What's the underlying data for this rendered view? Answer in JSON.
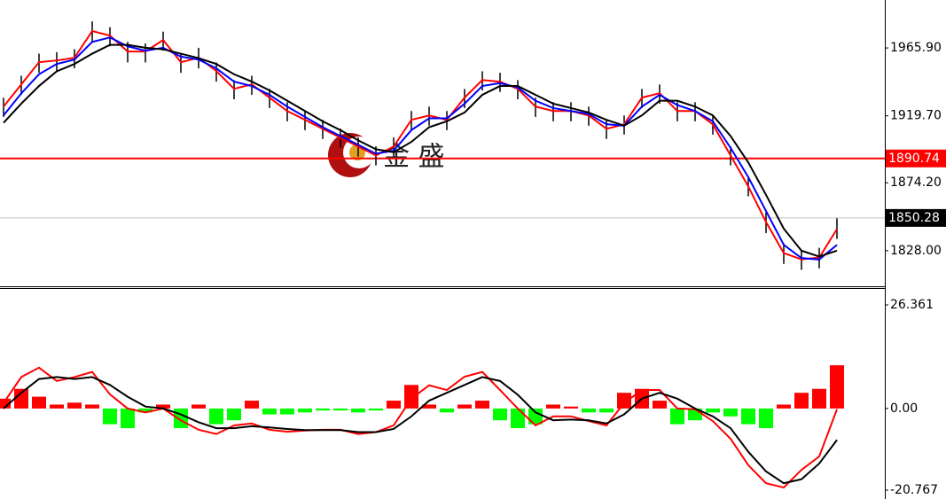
{
  "chart_data": [
    {
      "type": "price",
      "high": [
        1932,
        1947,
        1962,
        1963,
        1965,
        1984,
        1980,
        1970,
        1969,
        1977,
        1962,
        1966,
        1956,
        1944,
        1947,
        1938,
        1929,
        1923,
        1917,
        1911,
        1905,
        1899,
        1905,
        1923,
        1926,
        1923,
        1938,
        1950,
        1949,
        1944,
        1932,
        1929,
        1929,
        1926,
        1917,
        1920,
        1938,
        1941,
        1929,
        1929,
        1920,
        1899,
        1878,
        1854,
        1833,
        1828,
        1830,
        1850
      ],
      "low": [
        1919,
        1934,
        1949,
        1950,
        1952,
        1970,
        1967,
        1956,
        1956,
        1964,
        1949,
        1952,
        1943,
        1931,
        1934,
        1925,
        1916,
        1910,
        1904,
        1898,
        1892,
        1886,
        1892,
        1910,
        1913,
        1910,
        1925,
        1937,
        1936,
        1931,
        1919,
        1916,
        1916,
        1913,
        1904,
        1907,
        1925,
        1928,
        1916,
        1916,
        1907,
        1886,
        1865,
        1840,
        1819,
        1815,
        1816,
        1836
      ],
      "bar_color": "#000000",
      "series": [
        {
          "color": "#ff0000",
          "values": [
            1926.0,
            1941.1,
            1956.2,
            1957.4,
            1959.2,
            1977.4,
            1974.3,
            1963.5,
            1963.5,
            1971.3,
            1956.2,
            1959.2,
            1950.2,
            1938.1,
            1941.1,
            1932.1,
            1923.0,
            1917.0,
            1910.9,
            1904.9,
            1898.8,
            1892.8,
            1898.8,
            1917.0,
            1920.0,
            1917.0,
            1932.1,
            1944.1,
            1942.9,
            1938.1,
            1926.0,
            1923.0,
            1923.0,
            1920.0,
            1910.9,
            1913.9,
            1932.1,
            1935.1,
            1923.0,
            1923.0,
            1913.9,
            1892.8,
            1871.7,
            1847.5,
            1826.4,
            1822.1,
            1823.3,
            1842.7
          ]
        },
        {
          "color": "#0000ff",
          "values": [
            1920,
            1935,
            1948,
            1955,
            1958,
            1970,
            1973,
            1967,
            1964,
            1966,
            1960,
            1958,
            1952,
            1943,
            1940,
            1934,
            1926,
            1919,
            1912,
            1906,
            1900,
            1894,
            1896,
            1910,
            1918,
            1918,
            1928,
            1940,
            1942,
            1939,
            1930,
            1925,
            1923,
            1921,
            1914,
            1913,
            1926,
            1934,
            1927,
            1923,
            1916,
            1898,
            1878,
            1855,
            1832,
            1823,
            1822,
            1832
          ]
        },
        {
          "color": "#000000",
          "values": [
            1915,
            1928,
            1940,
            1950,
            1955,
            1962,
            1968,
            1968,
            1966,
            1965,
            1962,
            1959,
            1955,
            1948,
            1943,
            1937,
            1930,
            1923,
            1916,
            1910,
            1903,
            1897,
            1895,
            1902,
            1912,
            1916,
            1922,
            1934,
            1940,
            1940,
            1934,
            1928,
            1925,
            1922,
            1917,
            1913,
            1920,
            1930,
            1930,
            1926,
            1920,
            1906,
            1888,
            1866,
            1843,
            1828,
            1824,
            1828
          ]
        }
      ],
      "ylim": [
        1803.8,
        1998.5
      ],
      "yticks": [
        {
          "value": 1965.9,
          "label": "1965.90"
        },
        {
          "value": 1919.7,
          "label": "1919.70"
        },
        {
          "value": 1874.2,
          "label": "1874.20"
        },
        {
          "value": 1828,
          "label": "1828.00"
        }
      ],
      "hlines": [
        {
          "value": 1890.74,
          "label": "1890.74",
          "color": "#ff0000"
        },
        {
          "value": 1850.28,
          "label": "1850.28",
          "color": "#c0c0c0"
        }
      ],
      "watermark": "金 盛"
    },
    {
      "type": "macd",
      "histogram": [
        2.5,
        5,
        3,
        1,
        1.5,
        1,
        -4,
        -5,
        -1,
        1,
        -5,
        1,
        -4,
        -3,
        2,
        -1.5,
        -1.5,
        -1,
        -0.5,
        -0.5,
        -1,
        -0.5,
        2,
        6,
        1,
        -1,
        1,
        2,
        -3,
        -5,
        -4,
        1,
        0.5,
        -1,
        -1,
        4,
        5,
        2,
        -4,
        -3,
        -1,
        -2,
        -4,
        -5,
        1,
        4,
        5,
        11
      ],
      "up_color": "#ff0000",
      "down_color": "#00ff00",
      "series": [
        {
          "color": "#ff0000",
          "values": [
            1.4,
            8,
            10.4,
            7,
            8,
            9.3,
            3.6,
            0,
            -1,
            0,
            -3,
            -5.4,
            -6.5,
            -4.3,
            -3.8,
            -5.4,
            -5.9,
            -5.6,
            -5.4,
            -5.4,
            -6.5,
            -6,
            -4.3,
            2.5,
            5.9,
            4.7,
            8.1,
            9.3,
            4.7,
            0,
            -4.3,
            -2,
            -2,
            -3.2,
            -4.3,
            1.4,
            4.7,
            4.7,
            0,
            -0.2,
            -3.2,
            -7.7,
            -14.4,
            -19,
            -20.1,
            -15.6,
            -12.2,
            -0.2
          ]
        },
        {
          "color": "#000000",
          "values": [
            0,
            4,
            7.5,
            8,
            7.5,
            8,
            6,
            3,
            0.5,
            0,
            -1.5,
            -3.5,
            -5,
            -5,
            -4.5,
            -4.8,
            -5.2,
            -5.5,
            -5.5,
            -5.5,
            -6,
            -6,
            -5.2,
            -2,
            2,
            4,
            6,
            8,
            7,
            3.5,
            -1,
            -3,
            -2.8,
            -3,
            -3.8,
            -1.5,
            2.5,
            4,
            2.5,
            0,
            -2,
            -5,
            -11,
            -16,
            -19,
            -18,
            -14,
            -8
          ]
        }
      ],
      "ylim": [
        -20.767,
        26.361
      ],
      "yticks": [
        {
          "value": 26.361,
          "label": "26.361"
        },
        {
          "value": 0,
          "label": "0.00"
        },
        {
          "value": -20.767,
          "label": "-20.767"
        }
      ]
    }
  ]
}
